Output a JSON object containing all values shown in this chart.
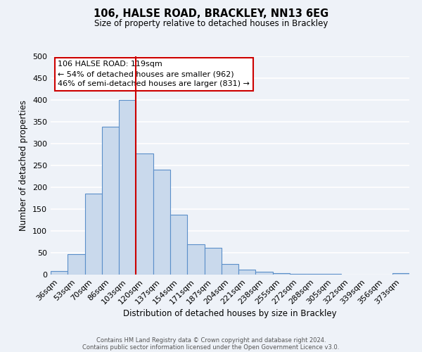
{
  "title": "106, HALSE ROAD, BRACKLEY, NN13 6EG",
  "subtitle": "Size of property relative to detached houses in Brackley",
  "xlabel": "Distribution of detached houses by size in Brackley",
  "ylabel": "Number of detached properties",
  "bar_labels": [
    "36sqm",
    "53sqm",
    "70sqm",
    "86sqm",
    "103sqm",
    "120sqm",
    "137sqm",
    "154sqm",
    "171sqm",
    "187sqm",
    "204sqm",
    "221sqm",
    "238sqm",
    "255sqm",
    "272sqm",
    "288sqm",
    "305sqm",
    "322sqm",
    "339sqm",
    "356sqm",
    "373sqm"
  ],
  "bar_values": [
    8,
    47,
    185,
    338,
    400,
    278,
    240,
    137,
    70,
    62,
    25,
    11,
    6,
    4,
    2,
    2,
    2,
    0,
    0,
    0,
    3
  ],
  "bar_color": "#c9d9ec",
  "bar_edge_color": "#5b8fc9",
  "vline_x": 4.5,
  "vline_color": "#cc0000",
  "ylim": [
    0,
    500
  ],
  "yticks": [
    0,
    50,
    100,
    150,
    200,
    250,
    300,
    350,
    400,
    450,
    500
  ],
  "annotation_title": "106 HALSE ROAD: 119sqm",
  "annotation_line1": "← 54% of detached houses are smaller (962)",
  "annotation_line2": "46% of semi-detached houses are larger (831) →",
  "annotation_box_color": "#ffffff",
  "annotation_box_edge_color": "#cc0000",
  "background_color": "#eef2f8",
  "grid_color": "#ffffff",
  "footer_line1": "Contains HM Land Registry data © Crown copyright and database right 2024.",
  "footer_line2": "Contains public sector information licensed under the Open Government Licence v3.0."
}
